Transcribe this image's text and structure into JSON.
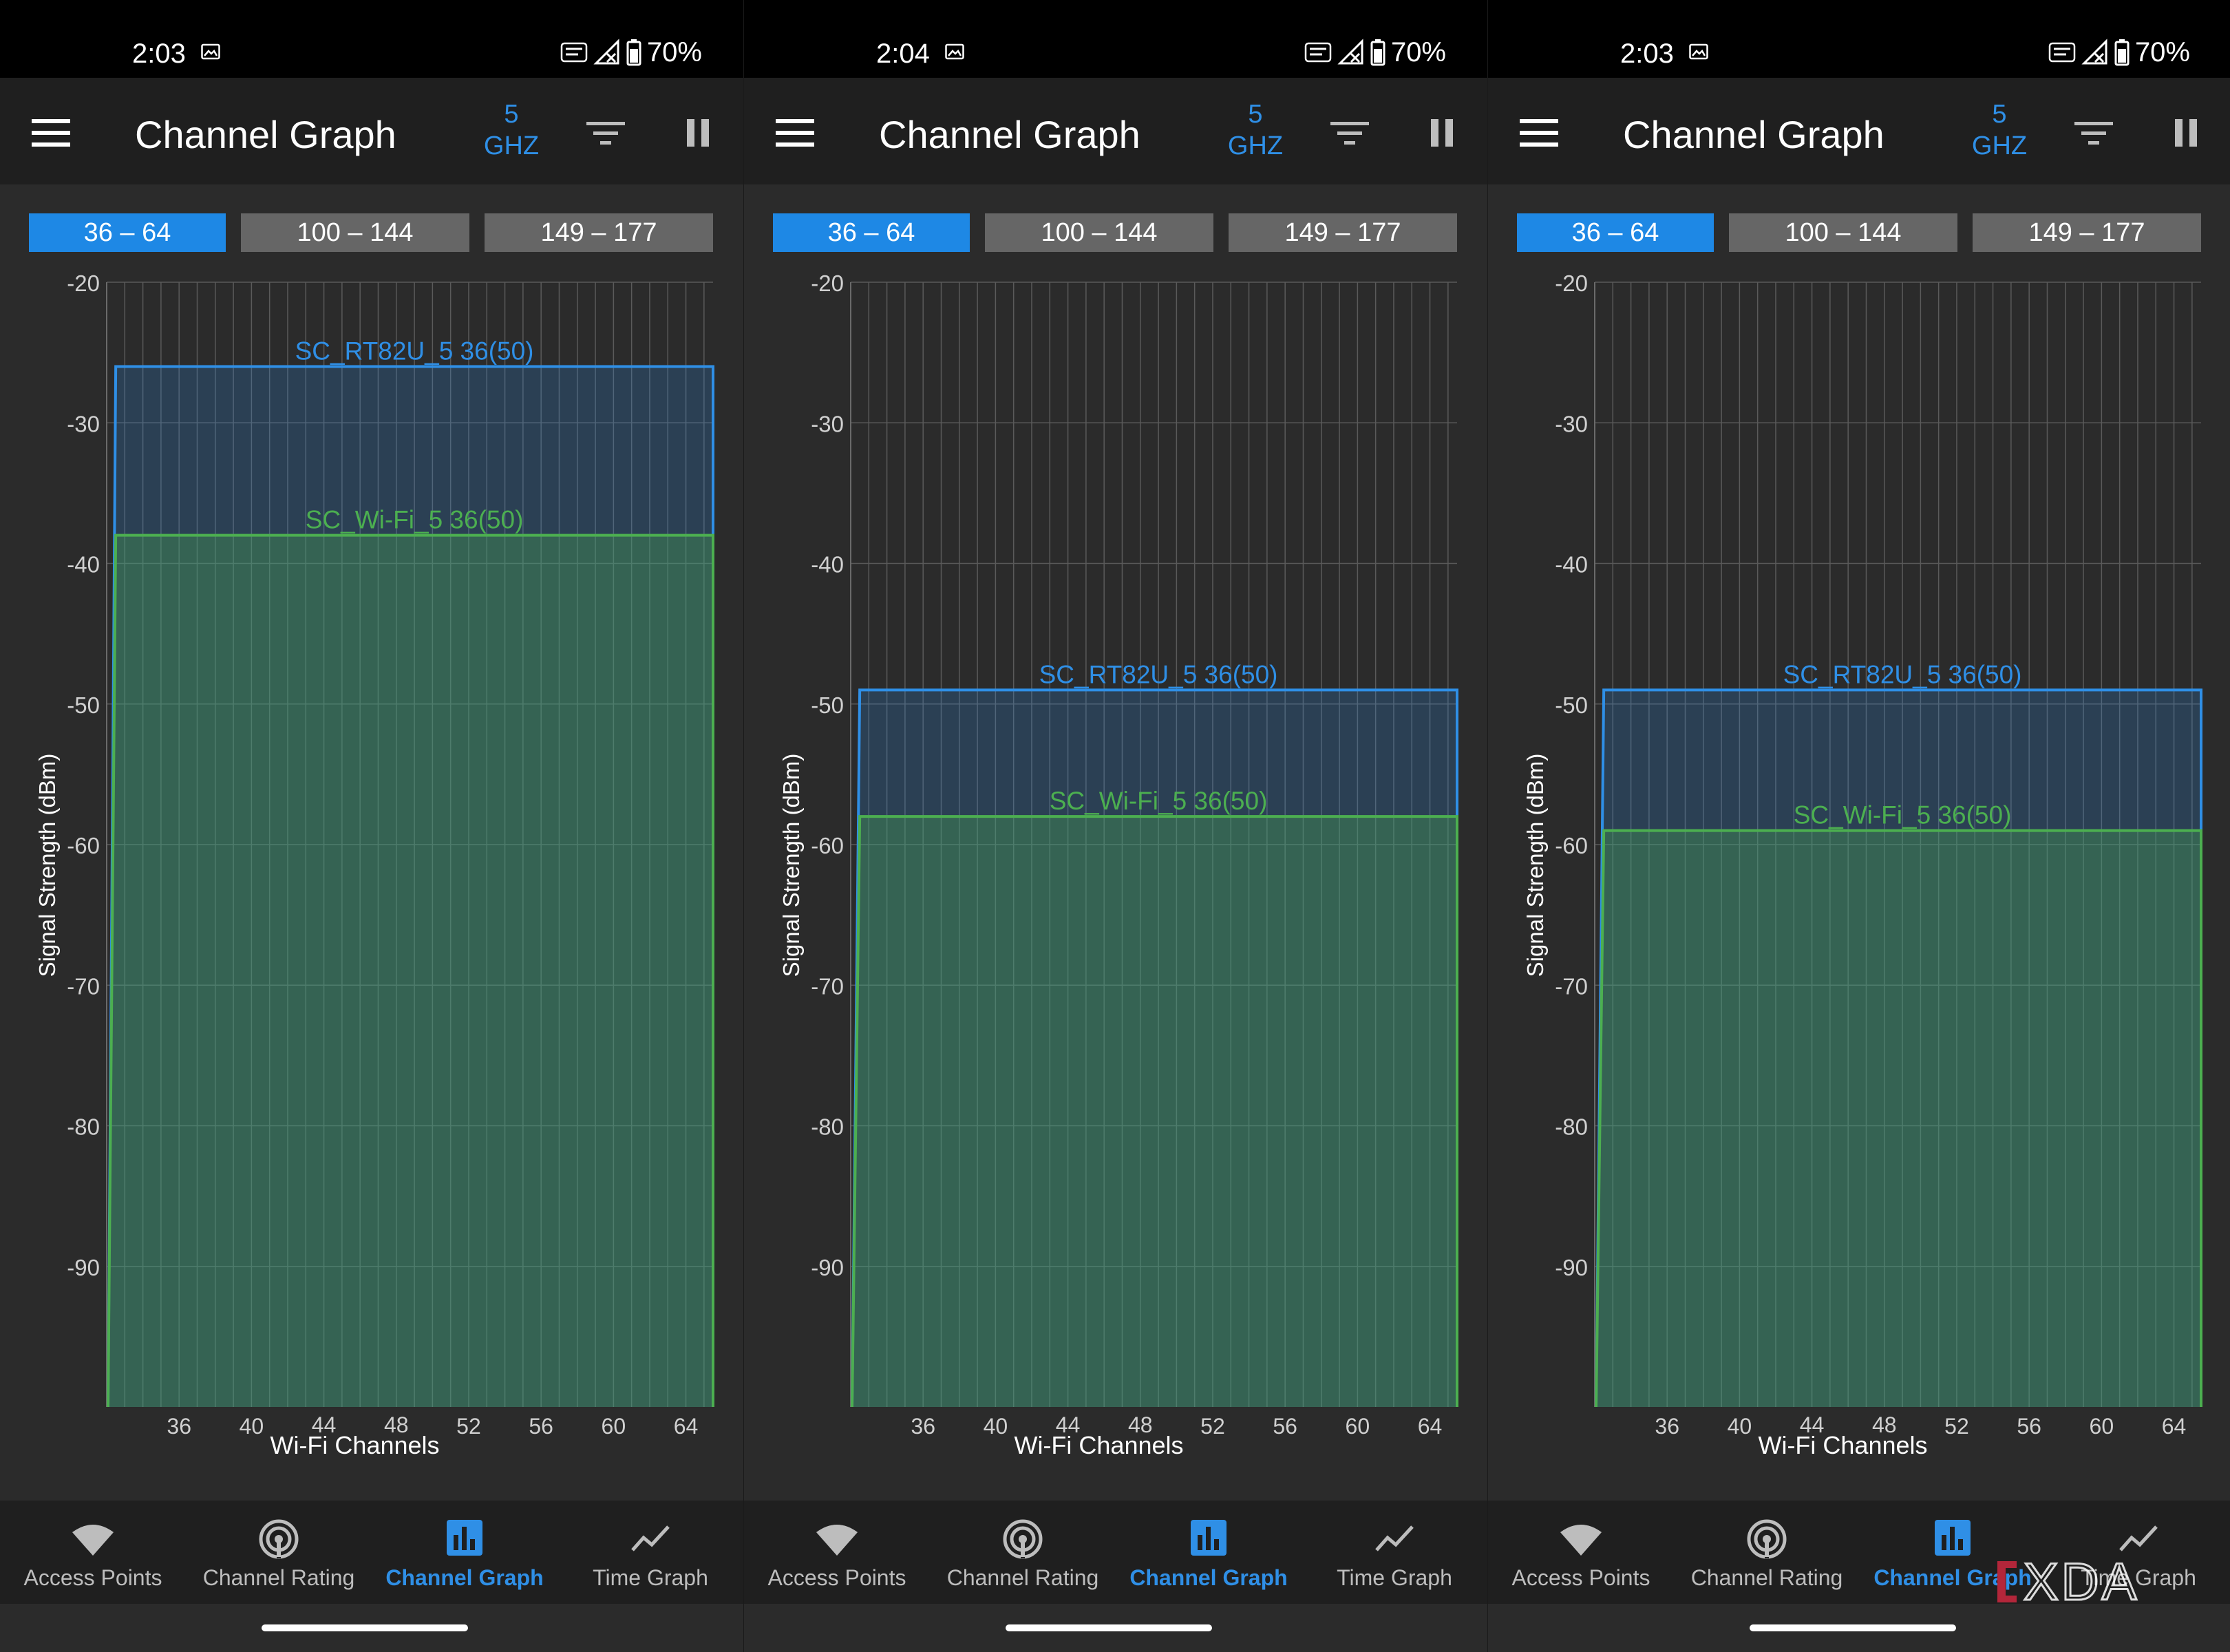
{
  "screens": [
    {
      "status": {
        "time": "2:03",
        "battery": "70%"
      },
      "appbar": {
        "title": "Channel Graph",
        "band_line1": "5",
        "band_line2": "GHZ"
      },
      "tabs": [
        "36 – 64",
        "100 – 144",
        "149 – 177"
      ],
      "active_tab": 0,
      "nav": [
        {
          "label": "Access Points",
          "icon": "wifi-icon"
        },
        {
          "label": "Channel Rating",
          "icon": "channel-rating-icon"
        },
        {
          "label": "Channel Graph",
          "icon": "bar-chart-icon"
        },
        {
          "label": "Time Graph",
          "icon": "line-chart-icon"
        }
      ],
      "active_nav": 2
    },
    {
      "status": {
        "time": "2:04",
        "battery": "70%"
      },
      "appbar": {
        "title": "Channel Graph",
        "band_line1": "5",
        "band_line2": "GHZ"
      },
      "tabs": [
        "36 – 64",
        "100 – 144",
        "149 – 177"
      ],
      "active_tab": 0,
      "nav": [
        {
          "label": "Access Points",
          "icon": "wifi-icon"
        },
        {
          "label": "Channel Rating",
          "icon": "channel-rating-icon"
        },
        {
          "label": "Channel Graph",
          "icon": "bar-chart-icon"
        },
        {
          "label": "Time Graph",
          "icon": "line-chart-icon"
        }
      ],
      "active_nav": 2
    },
    {
      "status": {
        "time": "2:03",
        "battery": "70%"
      },
      "appbar": {
        "title": "Channel Graph",
        "band_line1": "5",
        "band_line2": "GHZ"
      },
      "tabs": [
        "36 – 64",
        "100 – 144",
        "149 – 177"
      ],
      "active_tab": 0,
      "nav": [
        {
          "label": "Access Points",
          "icon": "wifi-icon"
        },
        {
          "label": "Channel Rating",
          "icon": "channel-rating-icon"
        },
        {
          "label": "Channel Graph",
          "icon": "bar-chart-icon"
        },
        {
          "label": "Time Graph",
          "icon": "line-chart-icon"
        }
      ],
      "active_nav": 2
    }
  ],
  "chart_data": [
    {
      "type": "area",
      "xlabel": "Wi-Fi Channels",
      "ylabel": "Signal Strength (dBm)",
      "x_ticks": [
        36,
        40,
        44,
        48,
        52,
        56,
        60,
        64
      ],
      "y_ticks": [
        -20,
        -30,
        -40,
        -50,
        -60,
        -70,
        -80,
        -90
      ],
      "xlim": [
        32,
        65.5
      ],
      "ylim": [
        -100,
        -20
      ],
      "grid": true,
      "series": [
        {
          "name": "SC_RT82U_5 36(50)",
          "channel_start": 32.5,
          "channel_end": 65.5,
          "dbm": -26,
          "color": "#2f8fe6"
        },
        {
          "name": "SC_Wi-Fi_5 36(50)",
          "channel_start": 32.5,
          "channel_end": 65.5,
          "dbm": -38,
          "color": "#4caf50"
        }
      ]
    },
    {
      "type": "area",
      "xlabel": "Wi-Fi Channels",
      "ylabel": "Signal Strength (dBm)",
      "x_ticks": [
        36,
        40,
        44,
        48,
        52,
        56,
        60,
        64
      ],
      "y_ticks": [
        -20,
        -30,
        -40,
        -50,
        -60,
        -70,
        -80,
        -90
      ],
      "xlim": [
        32,
        65.5
      ],
      "ylim": [
        -100,
        -20
      ],
      "grid": true,
      "series": [
        {
          "name": "SC_RT82U_5 36(50)",
          "channel_start": 32.5,
          "channel_end": 65.5,
          "dbm": -49,
          "color": "#2f8fe6"
        },
        {
          "name": "SC_Wi-Fi_5 36(50)",
          "channel_start": 32.5,
          "channel_end": 65.5,
          "dbm": -58,
          "color": "#4caf50"
        }
      ]
    },
    {
      "type": "area",
      "xlabel": "Wi-Fi Channels",
      "ylabel": "Signal Strength (dBm)",
      "x_ticks": [
        36,
        40,
        44,
        48,
        52,
        56,
        60,
        64
      ],
      "y_ticks": [
        -20,
        -30,
        -40,
        -50,
        -60,
        -70,
        -80,
        -90
      ],
      "xlim": [
        32,
        65.5
      ],
      "ylim": [
        -100,
        -20
      ],
      "grid": true,
      "series": [
        {
          "name": "SC_RT82U_5 36(50)",
          "channel_start": 32.5,
          "channel_end": 65.5,
          "dbm": -49,
          "color": "#2f8fe6"
        },
        {
          "name": "SC_Wi-Fi_5 36(50)",
          "channel_start": 32.5,
          "channel_end": 65.5,
          "dbm": -59,
          "color": "#4caf50"
        }
      ]
    }
  ],
  "watermark": {
    "text": "XDA"
  }
}
